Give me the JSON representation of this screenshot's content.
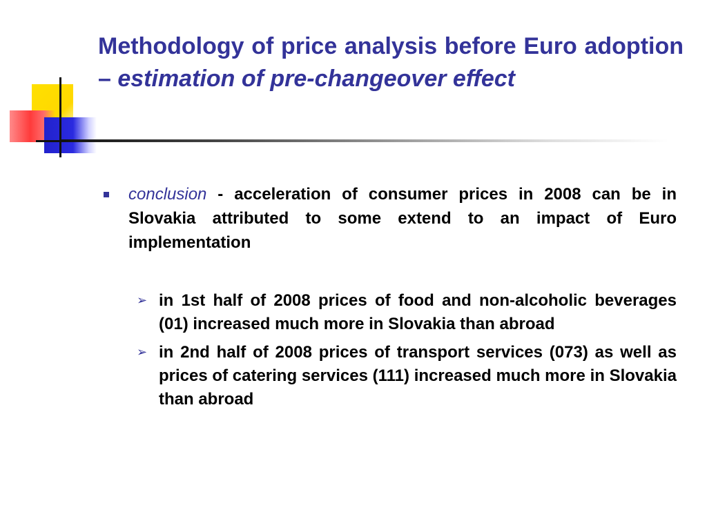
{
  "slide": {
    "title_part1": "Methodology of price analysis before Euro adoption – ",
    "title_part2": "estimation of pre-changeover effect",
    "bullet": {
      "lead": "conclusion",
      "text": " - acceleration of consumer prices in 2008 can be in Slovakia attributed to some extend to an impact of Euro implementation"
    },
    "sub_bullets": [
      "in 1st half of 2008 prices of food and non-alcoholic beverages (01) increased much more in Slovakia than abroad",
      "in 2nd half of 2008 prices of transport services (073) as well as prices of catering services (111) increased much more in Slovakia than abroad"
    ]
  },
  "icons": {
    "level1_bullet": "square-bullet-icon",
    "level2_bullet": "arrow-bullet-icon"
  },
  "colors": {
    "accent": "#333399",
    "text": "#000000"
  }
}
